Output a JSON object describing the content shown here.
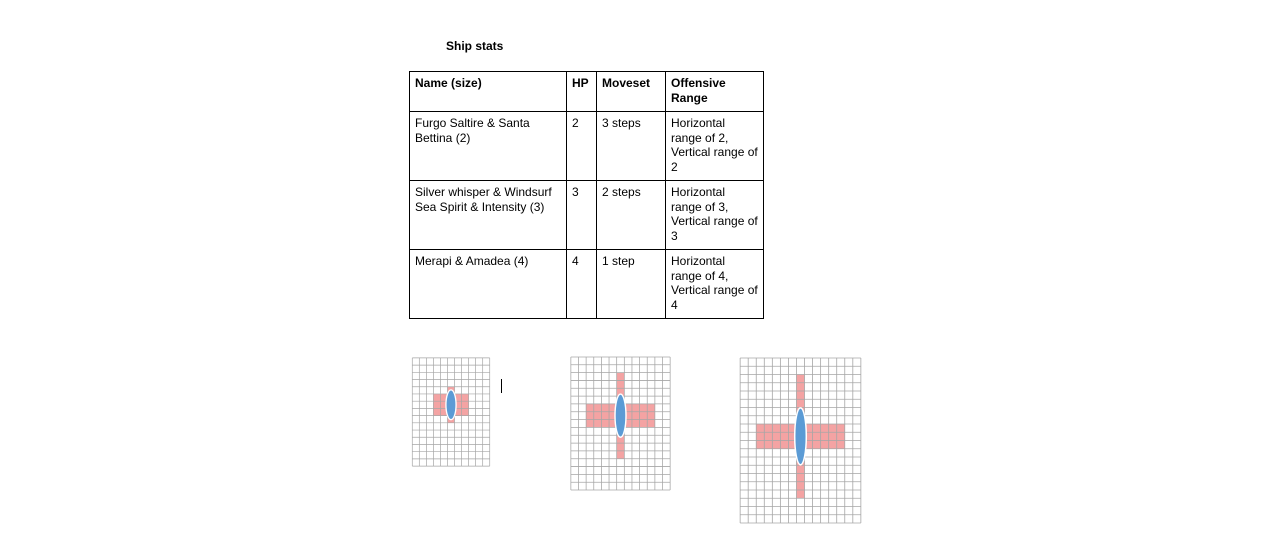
{
  "document": {
    "title": "Ship stats"
  },
  "table": {
    "headers": [
      "Name (size)",
      "HP",
      "Moveset",
      "Offensive Range"
    ],
    "rows": [
      [
        "Furgo Saltire & Santa Bettina (2)",
        "2",
        "3 steps",
        "Horizontal range of 2, Vertical range of 2"
      ],
      [
        "Silver whisper & Windsurf Sea Spirit & Intensity (3)",
        "3",
        "2 steps",
        "Horizontal range of 3, Vertical range of 3"
      ],
      [
        "Merapi & Amadea (4)",
        "4",
        "1 step",
        "Horizontal range of 4, Vertical range of 4"
      ]
    ]
  },
  "diagrams": [
    {
      "range": 2,
      "grid_cols": 11,
      "grid_rows": 15
    },
    {
      "range": 3,
      "grid_cols": 13,
      "grid_rows": 17
    },
    {
      "range": 4,
      "grid_cols": 15,
      "grid_rows": 20
    }
  ],
  "colors": {
    "grid_line": "#a6a6a6",
    "range_fill": "#f4a3a3",
    "ship_fill": "#5b9bd5"
  }
}
